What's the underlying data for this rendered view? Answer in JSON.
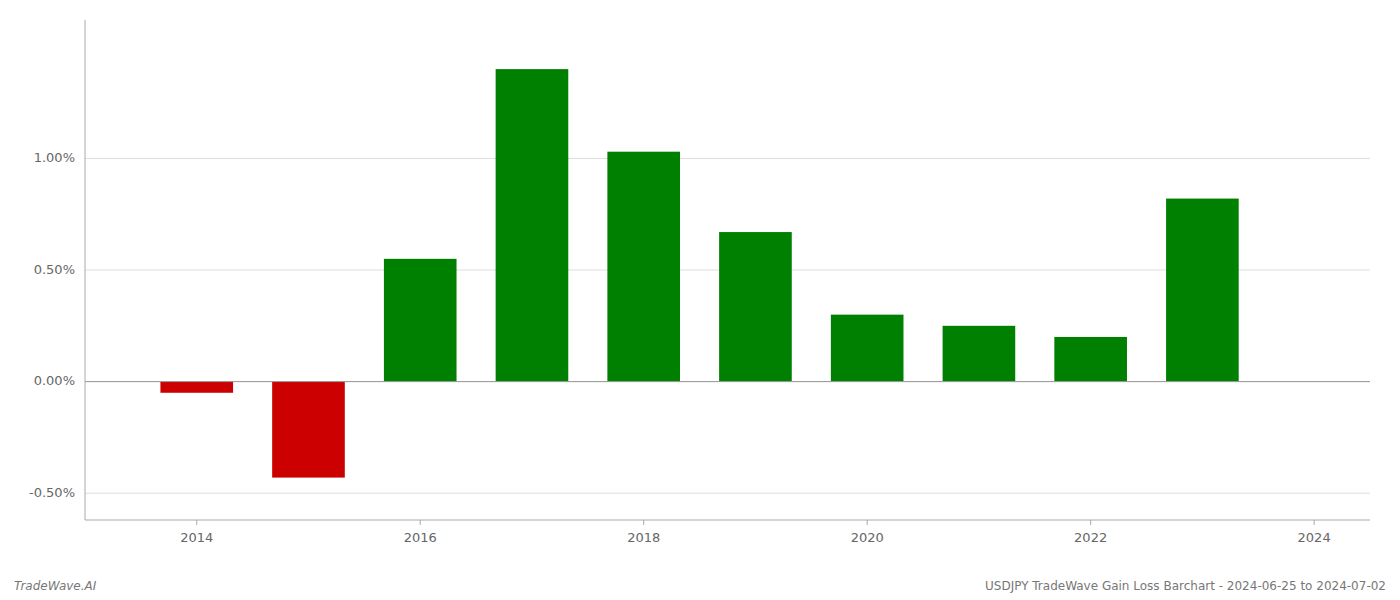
{
  "chart_data": {
    "type": "bar",
    "x": [
      2014,
      2015,
      2016,
      2017,
      2018,
      2019,
      2020,
      2021,
      2022,
      2023
    ],
    "values": [
      -0.05,
      -0.43,
      0.55,
      1.4,
      1.03,
      0.67,
      0.3,
      0.25,
      0.2,
      0.82
    ],
    "colors": [
      "#cc0000",
      "#cc0000",
      "#008000",
      "#008000",
      "#008000",
      "#008000",
      "#008000",
      "#008000",
      "#008000",
      "#008000"
    ],
    "xlim": [
      2013.0,
      2024.5
    ],
    "xticks": [
      2014,
      2016,
      2018,
      2020,
      2022,
      2024
    ],
    "ylim": [
      -0.62,
      1.62
    ],
    "yticks": [
      {
        "value": -0.5,
        "label": "-0.50%"
      },
      {
        "value": 0.0,
        "label": "0.00%"
      },
      {
        "value": 0.5,
        "label": "0.50%"
      },
      {
        "value": 1.0,
        "label": "1.00%"
      }
    ],
    "grid": true,
    "annotations": [
      "TradeWave.AI",
      "USDJPY TradeWave Gain Loss Barchart - 2024-06-25 to 2024-07-02"
    ]
  }
}
